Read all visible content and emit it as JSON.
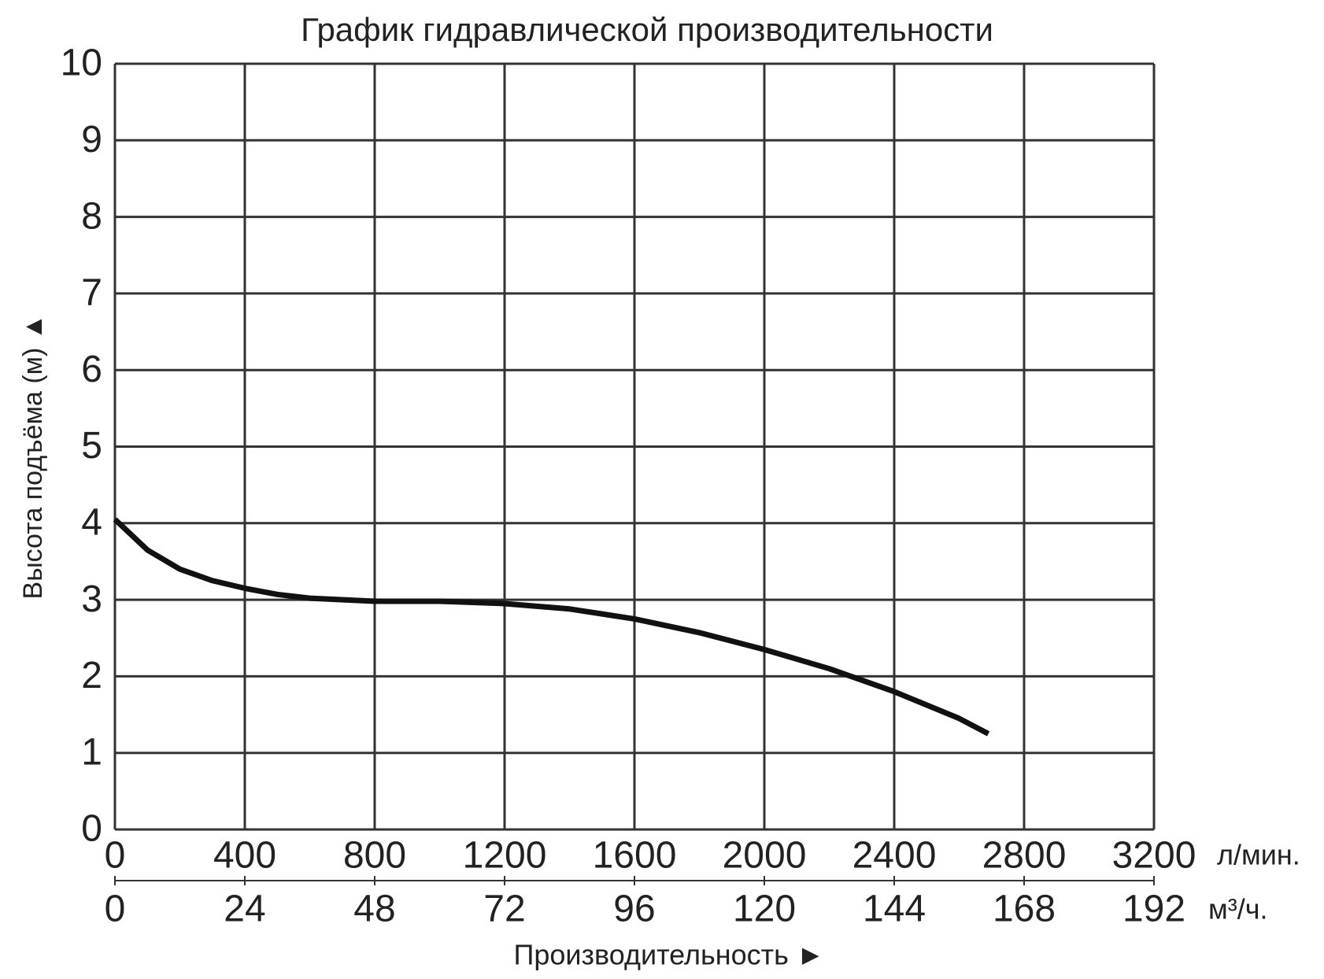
{
  "chart_data": {
    "type": "line",
    "title": "График гидравлической производительности",
    "x_label": "Производительность ►",
    "y_label": "Высота подъёма (м) ▲",
    "x_unit": "л/мин.",
    "x2_unit": "м³/ч.",
    "x": [
      0,
      100,
      200,
      300,
      400,
      500,
      600,
      800,
      1000,
      1200,
      1400,
      1600,
      1800,
      2000,
      2200,
      2400,
      2600,
      2690
    ],
    "series": [
      {
        "name": "Высота подъёма",
        "color": "#111111",
        "values": [
          4.05,
          3.65,
          3.4,
          3.25,
          3.15,
          3.07,
          3.02,
          2.98,
          2.98,
          2.95,
          2.88,
          2.75,
          2.57,
          2.35,
          2.1,
          1.8,
          1.45,
          1.25
        ]
      }
    ],
    "xlim": [
      0,
      3200
    ],
    "xticks": [
      0,
      400,
      800,
      1200,
      1600,
      2000,
      2400,
      2800,
      3200
    ],
    "x2lim": [
      0,
      192
    ],
    "x2ticks": [
      0,
      24,
      48,
      72,
      96,
      120,
      144,
      168,
      192
    ],
    "ylim": [
      0,
      10
    ],
    "yticks": [
      0,
      1,
      2,
      3,
      4,
      5,
      6,
      7,
      8,
      9,
      10
    ],
    "grid": true
  }
}
